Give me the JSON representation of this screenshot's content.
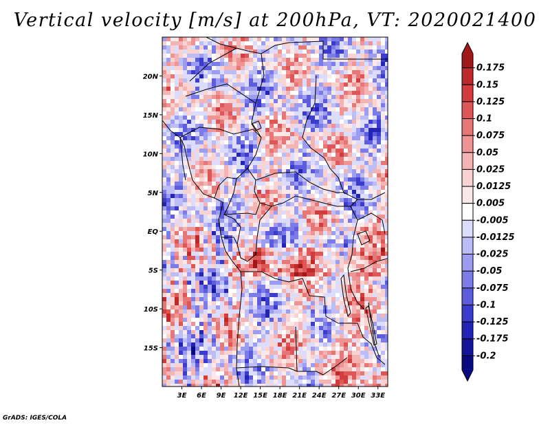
{
  "title": "Vertical velocity [m/s] at 200hPa, VT: 2020021400",
  "credit": "GrADS: IGES/COLA",
  "map": {
    "variable": "Vertical velocity",
    "units": "m/s",
    "level": "200hPa",
    "valid_time": "2020021400",
    "lat_labels": [
      "20N",
      "15N",
      "10N",
      "5N",
      "EQ",
      "5S",
      "10S",
      "15S"
    ],
    "lat_values": [
      20,
      15,
      10,
      5,
      0,
      -5,
      -10,
      -15
    ],
    "lon_labels": [
      "3E",
      "6E",
      "9E",
      "12E",
      "15E",
      "18E",
      "21E",
      "24E",
      "27E",
      "30E",
      "33E"
    ],
    "lon_values": [
      3,
      6,
      9,
      12,
      15,
      18,
      21,
      24,
      27,
      30,
      33
    ],
    "lon_range": [
      0,
      34.5
    ],
    "lat_range": [
      -20,
      25
    ]
  },
  "colorbar": {
    "labels": [
      "0.175",
      "0.15",
      "0.125",
      "0.1",
      "0.075",
      "0.05",
      "0.025",
      "0.0125",
      "0.005",
      "-0.005",
      "-0.0125",
      "-0.025",
      "-0.05",
      "-0.075",
      "-0.1",
      "-0.125",
      "-0.175",
      "-0.2"
    ],
    "colors": [
      "#a01818",
      "#bd2a2a",
      "#d13c3c",
      "#df5656",
      "#e77676",
      "#ef9494",
      "#f5b4b4",
      "#f9d2d2",
      "#fbe8e8",
      "#ffffff",
      "#dcdcfc",
      "#bcbcf6",
      "#9c9cf0",
      "#7c7ce8",
      "#5c5cdc",
      "#3c3ccc",
      "#2424b4",
      "#14149a",
      "#0a0a80"
    ]
  }
}
